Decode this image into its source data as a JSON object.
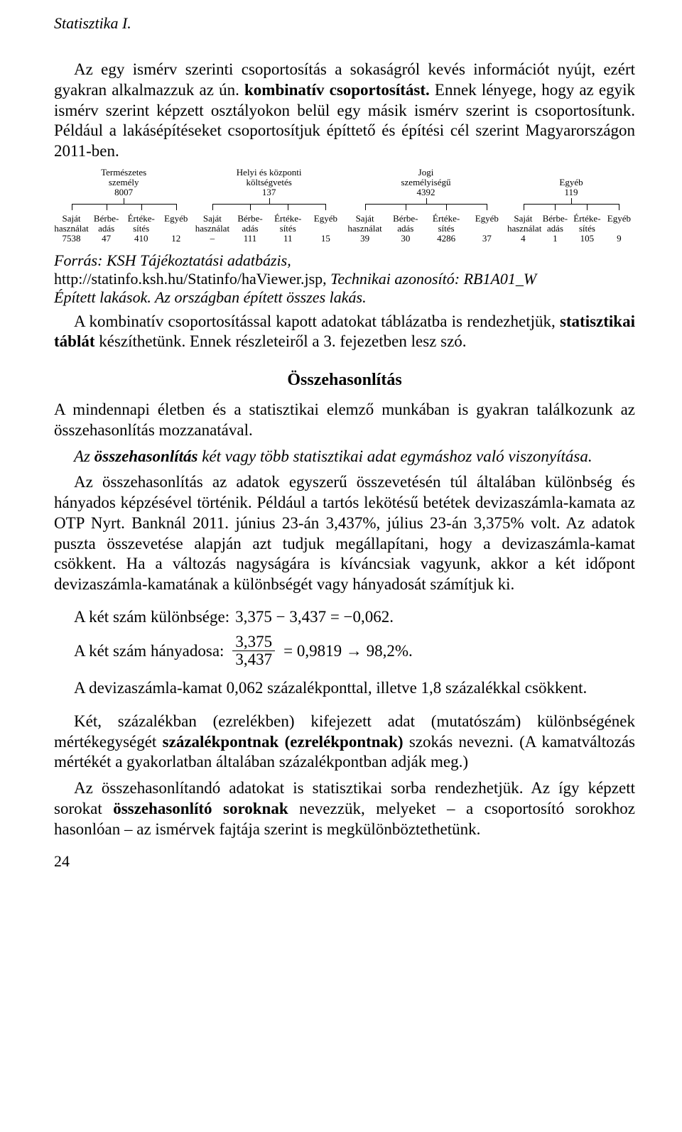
{
  "header": "Statisztika I.",
  "intro_p1_a": "Az egy ismérv szerinti csoportosítás a sokaságról kevés információt nyújt, ezért gyakran alkalmazzuk az ún. ",
  "intro_p1_b": "kombinatív csoportosítást.",
  "intro_p1_c": " Ennek lényege, hogy az egyik ismérv szerint képzett osztályokon belül egy másik ismérv szerint is csoportosítunk. Például a lakásépítéseket csoportosítjuk építtető és építési cél szerint Magyarországon 2011-ben.",
  "tree": {
    "top": [
      {
        "line1": "Természetes",
        "line2": "személy",
        "value": "8007",
        "width_pct": 24
      },
      {
        "line1": "Helyi és központi",
        "line2": "költségvetés",
        "value": "137",
        "width_pct": 26
      },
      {
        "line1": "Jogi",
        "line2": "személyiségű",
        "value": "4392",
        "width_pct": 28
      },
      {
        "line1": "",
        "line2": "Egyéb",
        "value": "119",
        "width_pct": 22
      }
    ],
    "leaf_labels": [
      {
        "l1": "Saját",
        "l2": "használat"
      },
      {
        "l1": "Bérbe-",
        "l2": "adás"
      },
      {
        "l1": "Értéke-",
        "l2": "sítés"
      },
      {
        "l1": "Egyéb",
        "l2": ""
      }
    ],
    "leaf_values": [
      [
        "7538",
        "47",
        "410",
        "12"
      ],
      [
        "–",
        "111",
        "11",
        "15"
      ],
      [
        "39",
        "30",
        "4286",
        "37"
      ],
      [
        "4",
        "1",
        "105",
        "9"
      ]
    ]
  },
  "source1_a": "Forrás: KSH Tájékoztatási adatbázis,",
  "source2_a": "http://statinfo.ksh.hu/Statinfo/haViewer.jsp, ",
  "source2_b": "Technikai azonosító: RB1A01_W",
  "source3": "Épített lakások. Az országban épített összes lakás.",
  "after_tree_a": "A kombinatív csoportosítással kapott adatokat táblázatba is rendezhetjük, ",
  "after_tree_b": "statisztikai táblát",
  "after_tree_c": " készíthetünk. Ennek részleteiről a 3. fejezetben lesz szó.",
  "section_title": "Összehasonlítás",
  "cmp_p1": "A mindennapi életben és a statisztikai elemző munkában is gyakran találkozunk az összehasonlítás mozzanatával.",
  "cmp_p2_a": "Az ",
  "cmp_p2_b": "összehasonlítás",
  "cmp_p2_c": " két vagy több statisztikai adat egymáshoz való viszonyítása.",
  "cmp_p3": "Az összehasonlítás az adatok egyszerű összevetésén túl általában különbség és hányados képzésével történik. Például a tartós lekötésű betétek devizaszámla-kamata az OTP Nyrt. Banknál 2011. június 23-án 3,437%, július 23-án 3,375% volt. Az adatok puszta összevetése alapján azt tudjuk megállapítani, hogy a devizaszámla-kamat csökkent. Ha a változás nagyságára is kíváncsiak vagyunk, akkor a két időpont devizaszámla-kamatának a különbségét vagy hányadosát számítjuk ki.",
  "diff_label": "A két szám különbsége: ",
  "diff_eq": "3,375 − 3,437 = −0,062.",
  "quot_label": "A két szám hányadosa: ",
  "quot_num": "3,375",
  "quot_den": "3,437",
  "quot_tail": " = 0,9819 → 98,2%.",
  "after_math": "A devizaszámla-kamat 0,062 százalékponttal, illetve 1,8 százalékkal csökkent.",
  "pct_p_a": "Két, százalékban (ezrelékben) kifejezett adat (mutatószám) különbségének mértékegységét ",
  "pct_p_b": "százalékpontnak (ezrelékpontnak)",
  "pct_p_c": " szokás nevezni. (A kamatváltozás mértékét a gyakorlatban általában százalékpontban adják meg.)",
  "last_p_a": "Az összehasonlítandó adatokat is statisztikai sorba rendezhetjük. Az így képzett sorokat ",
  "last_p_b": "összehasonlító soroknak",
  "last_p_c": " nevezzük, melyeket – a csoportosító sorokhoz hasonlóan – az ismérvek fajtája szerint is megkülönböztethetünk.",
  "page_number": "24"
}
